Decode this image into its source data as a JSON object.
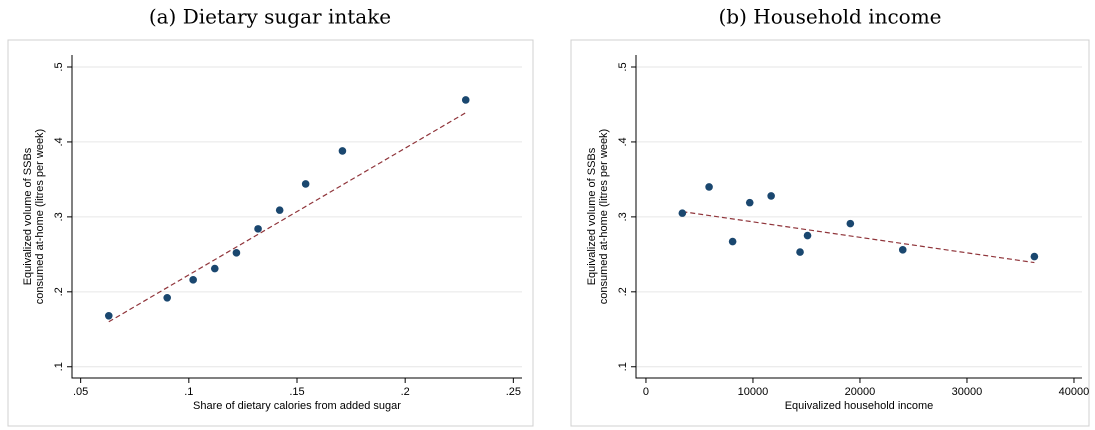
{
  "chart_data": [
    {
      "type": "scatter",
      "title": "(a) Dietary sugar intake",
      "xlabel": "Share of dietary calories from added sugar",
      "ylabel": [
        "Equivalized volume of SSBs",
        "consumed at-home (litres per week)"
      ],
      "x": [
        0.063,
        0.09,
        0.102,
        0.112,
        0.122,
        0.132,
        0.142,
        0.154,
        0.171,
        0.228
      ],
      "values": [
        0.168,
        0.192,
        0.216,
        0.231,
        0.252,
        0.284,
        0.309,
        0.344,
        0.388,
        0.456
      ],
      "color": "#1a476f",
      "fit": {
        "x": [
          0.063,
          0.228
        ],
        "y": [
          0.16,
          0.439
        ],
        "color": "#90353b"
      },
      "xlim": [
        0.046,
        0.254
      ],
      "ylim": [
        0.085,
        0.516
      ],
      "xticks": [
        {
          "value": 0.05,
          "label": ".05"
        },
        {
          "value": 0.1,
          "label": ".1"
        },
        {
          "value": 0.15,
          "label": ".15"
        },
        {
          "value": 0.2,
          "label": ".2"
        },
        {
          "value": 0.25,
          "label": ".25"
        }
      ],
      "yticks": [
        {
          "value": 0.1,
          "label": ".1"
        },
        {
          "value": 0.2,
          "label": ".2"
        },
        {
          "value": 0.3,
          "label": ".3"
        },
        {
          "value": 0.4,
          "label": ".4"
        },
        {
          "value": 0.5,
          "label": ".5"
        }
      ],
      "grid": true
    },
    {
      "type": "scatter",
      "title": "(b) Household income",
      "xlabel": "Equivalized household income",
      "ylabel": [
        "Equivalized volume of SSBs",
        "consumed at-home (litres per week)"
      ],
      "x": [
        3400,
        5900,
        8100,
        9700,
        11700,
        14400,
        15100,
        19100,
        24000,
        36300
      ],
      "values": [
        0.305,
        0.34,
        0.267,
        0.319,
        0.328,
        0.253,
        0.275,
        0.291,
        0.256,
        0.247
      ],
      "color": "#1a476f",
      "fit": {
        "x": [
          3400,
          36300
        ],
        "y": [
          0.307,
          0.239
        ],
        "color": "#90353b"
      },
      "xlim": [
        -930,
        40750
      ],
      "ylim": [
        0.085,
        0.516
      ],
      "xticks": [
        0,
        10000,
        20000,
        30000,
        40000
      ],
      "yticks": [
        {
          "value": 0.1,
          "label": ".1"
        },
        {
          "value": 0.2,
          "label": ".2"
        },
        {
          "value": 0.3,
          "label": ".3"
        },
        {
          "value": 0.4,
          "label": ".4"
        },
        {
          "value": 0.5,
          "label": ".5"
        }
      ],
      "grid": true
    }
  ]
}
